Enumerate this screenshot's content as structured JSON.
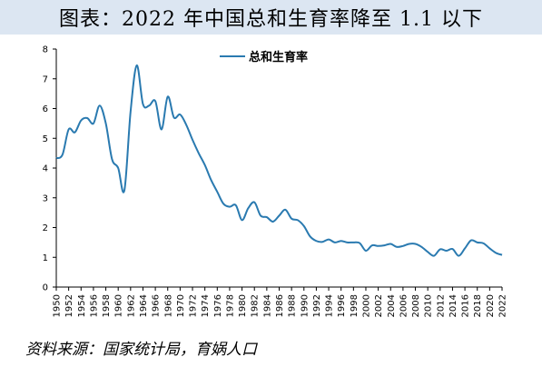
{
  "header": {
    "title": "图表：2022 年中国总和生育率降至 1.1 以下"
  },
  "footer": {
    "source": "资料来源：国家统计局，育娲人口"
  },
  "colors": {
    "line": "#2a7ab0",
    "title_bg": "#dce6f2",
    "axis": "#000000"
  },
  "chart_data": {
    "type": "line",
    "title": "",
    "xlabel": "",
    "ylabel": "",
    "ylim": [
      0,
      8
    ],
    "y_ticks": [
      "0",
      "1",
      "2",
      "3",
      "4",
      "5",
      "6",
      "7",
      "8"
    ],
    "x_tick_labels": [
      "1950",
      "1952",
      "1954",
      "1956",
      "1958",
      "1960",
      "1962",
      "1964",
      "1966",
      "1968",
      "1970",
      "1972",
      "1974",
      "1976",
      "1978",
      "1980",
      "1982",
      "1984",
      "1986",
      "1988",
      "1990",
      "1992",
      "1994",
      "1996",
      "1998",
      "2000",
      "2002",
      "2004",
      "2006",
      "2008",
      "2010",
      "2012",
      "2014",
      "2016",
      "2018",
      "2020",
      "2022"
    ],
    "grid": false,
    "legend_position": "top",
    "series": [
      {
        "name": "总和生育率",
        "x": [
          1950,
          1951,
          1952,
          1953,
          1954,
          1955,
          1956,
          1957,
          1958,
          1959,
          1960,
          1961,
          1962,
          1963,
          1964,
          1965,
          1966,
          1967,
          1968,
          1969,
          1970,
          1971,
          1972,
          1973,
          1974,
          1975,
          1976,
          1977,
          1978,
          1979,
          1980,
          1981,
          1982,
          1983,
          1984,
          1985,
          1986,
          1987,
          1988,
          1989,
          1990,
          1991,
          1992,
          1993,
          1994,
          1995,
          1996,
          1997,
          1998,
          1999,
          2000,
          2001,
          2002,
          2003,
          2004,
          2005,
          2006,
          2007,
          2008,
          2009,
          2010,
          2011,
          2012,
          2013,
          2014,
          2015,
          2016,
          2017,
          2018,
          2019,
          2020,
          2021,
          2022
        ],
        "y": [
          4.33,
          4.45,
          5.3,
          5.2,
          5.6,
          5.68,
          5.5,
          6.1,
          5.5,
          4.3,
          4.0,
          3.25,
          5.9,
          7.45,
          6.15,
          6.1,
          6.25,
          5.3,
          6.4,
          5.7,
          5.8,
          5.45,
          4.95,
          4.5,
          4.1,
          3.6,
          3.2,
          2.8,
          2.7,
          2.75,
          2.25,
          2.65,
          2.85,
          2.4,
          2.35,
          2.2,
          2.4,
          2.6,
          2.3,
          2.25,
          2.05,
          1.7,
          1.55,
          1.52,
          1.6,
          1.5,
          1.55,
          1.5,
          1.5,
          1.48,
          1.22,
          1.4,
          1.38,
          1.4,
          1.45,
          1.35,
          1.38,
          1.45,
          1.45,
          1.35,
          1.18,
          1.05,
          1.27,
          1.22,
          1.28,
          1.05,
          1.3,
          1.57,
          1.5,
          1.47,
          1.3,
          1.15,
          1.08
        ]
      }
    ]
  }
}
